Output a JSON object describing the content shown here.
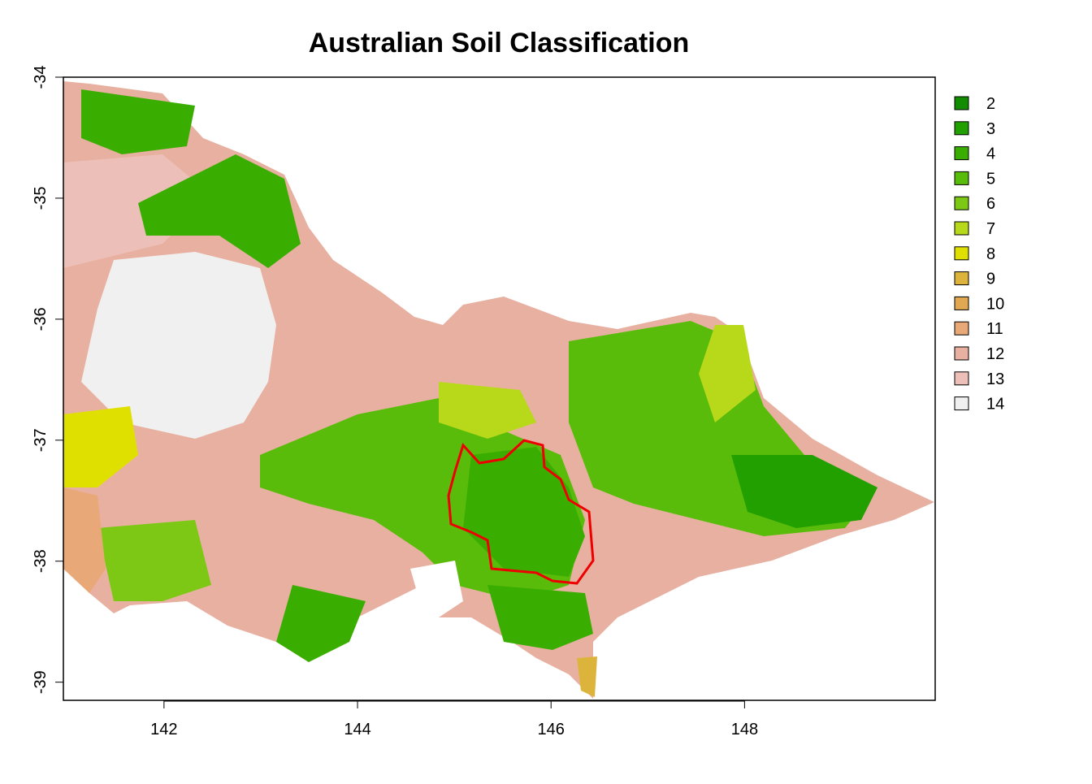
{
  "map": {
    "title": "Australian Soil Classification",
    "xlim": [
      140.96,
      149.97
    ],
    "ylim": [
      -39.15,
      -34
    ],
    "xticks": [
      142,
      144,
      146,
      148
    ],
    "yticks": [
      -34,
      -35,
      -36,
      -37,
      -38,
      -39
    ],
    "legend": [
      {
        "label": "2",
        "color": "#128c00"
      },
      {
        "label": "3",
        "color": "#22a000"
      },
      {
        "label": "4",
        "color": "#3aae00"
      },
      {
        "label": "5",
        "color": "#5abc0a"
      },
      {
        "label": "6",
        "color": "#7cc814"
      },
      {
        "label": "7",
        "color": "#b8d81a"
      },
      {
        "label": "8",
        "color": "#e0e000"
      },
      {
        "label": "9",
        "color": "#dcb43c"
      },
      {
        "label": "10",
        "color": "#e0a850"
      },
      {
        "label": "11",
        "color": "#e8a878"
      },
      {
        "label": "12",
        "color": "#e8b0a0"
      },
      {
        "label": "13",
        "color": "#ecc0b8"
      },
      {
        "label": "14",
        "color": "#f0f0f0"
      }
    ]
  }
}
